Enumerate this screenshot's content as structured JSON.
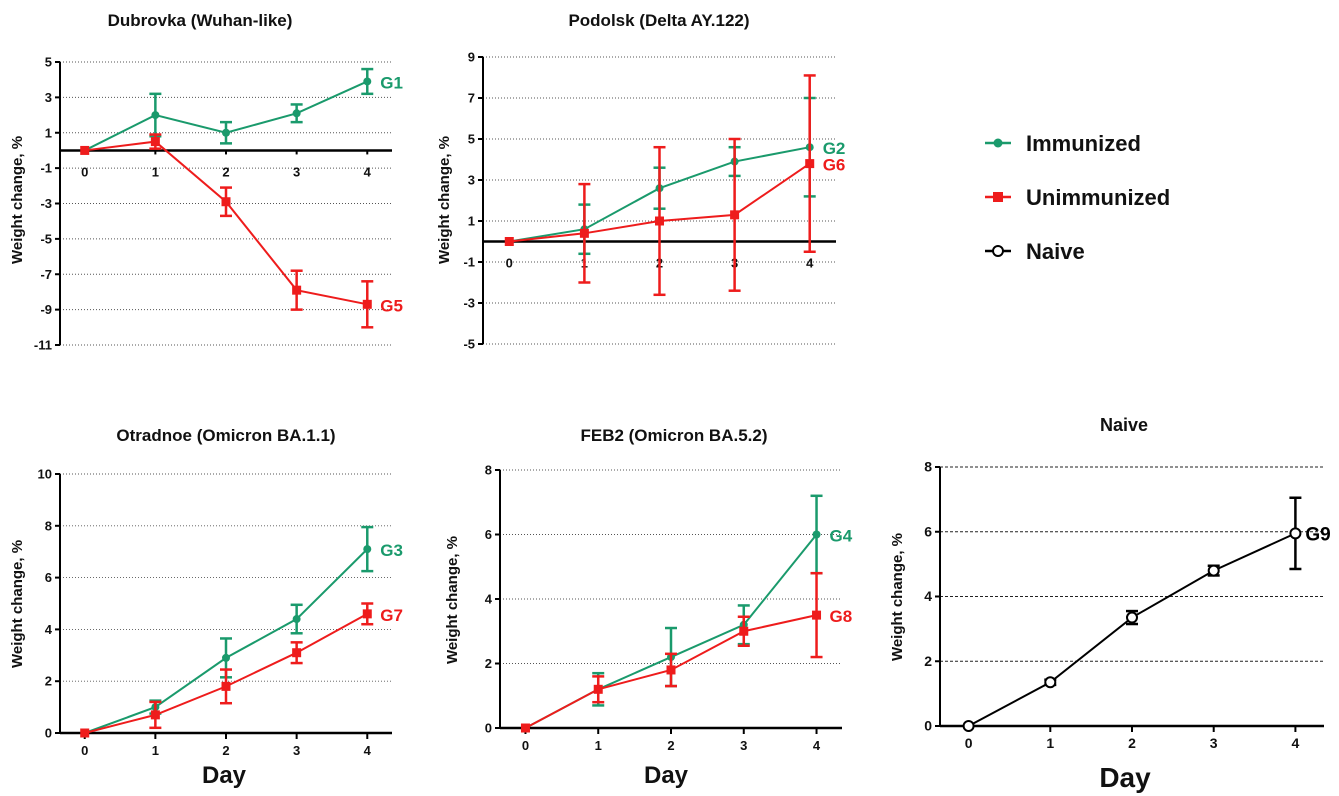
{
  "legend": {
    "entries": [
      {
        "label": "Immunized",
        "color": "#1a9a6c",
        "marker": "circle-filled"
      },
      {
        "label": "Unimmunized",
        "color": "#ee1c1c",
        "marker": "square-filled"
      },
      {
        "label": "Naive",
        "color": "#000000",
        "marker": "circle-open"
      }
    ]
  },
  "chart_data": [
    {
      "type": "line",
      "title": "Dubrovka (Wuhan-like)",
      "xlabel": "",
      "ylabel": "Weight change, %",
      "x": [
        0,
        1,
        2,
        3,
        4
      ],
      "xlim": [
        -0.35,
        4.35
      ],
      "ylim": [
        -11,
        5
      ],
      "yticks": [
        5,
        3,
        1,
        -1,
        -3,
        -5,
        -7,
        -9,
        -11
      ],
      "zero_line": true,
      "grid": "horizontal-dotted",
      "series": [
        {
          "label": "G1",
          "color": "#1a9a6c",
          "marker": "circle",
          "y": [
            0,
            2.0,
            1.0,
            2.1,
            3.9
          ],
          "err": [
            0,
            1.2,
            0.6,
            0.5,
            0.7
          ]
        },
        {
          "label": "G5",
          "color": "#ee1c1c",
          "marker": "square",
          "y": [
            0,
            0.5,
            -2.9,
            -7.9,
            -8.7
          ],
          "err": [
            0,
            0.4,
            0.8,
            1.1,
            1.3
          ]
        }
      ]
    },
    {
      "type": "line",
      "title": "Podolsk (Delta AY.122)",
      "xlabel": "",
      "ylabel": "Weight change, %",
      "x": [
        0,
        1,
        2,
        3,
        4
      ],
      "xlim": [
        -0.35,
        4.35
      ],
      "ylim": [
        -5,
        9
      ],
      "yticks": [
        9,
        7,
        5,
        3,
        1,
        -1,
        -3,
        -5
      ],
      "zero_line": true,
      "grid": "horizontal-dotted",
      "series": [
        {
          "label": "G2",
          "color": "#1a9a6c",
          "marker": "circle",
          "y": [
            0,
            0.6,
            2.6,
            3.9,
            4.6
          ],
          "err": [
            0,
            1.2,
            1.0,
            0.7,
            2.4
          ]
        },
        {
          "label": "G6",
          "color": "#ee1c1c",
          "marker": "square",
          "y": [
            0,
            0.4,
            1.0,
            1.3,
            3.8
          ],
          "err": [
            0,
            2.4,
            3.6,
            3.7,
            4.3
          ]
        }
      ]
    },
    {
      "type": "line",
      "title": "Otradnoe (Omicron BA.1.1)",
      "xlabel": "Day",
      "ylabel": "Weight change, %",
      "x": [
        0,
        1,
        2,
        3,
        4
      ],
      "xlim": [
        -0.35,
        4.35
      ],
      "ylim": [
        0,
        10
      ],
      "yticks": [
        0,
        2,
        4,
        6,
        8,
        10
      ],
      "zero_line": false,
      "grid": "horizontal-dotted",
      "series": [
        {
          "label": "G3",
          "color": "#1a9a6c",
          "marker": "circle",
          "y": [
            0,
            1.0,
            2.9,
            4.4,
            7.1
          ],
          "err": [
            0,
            0.25,
            0.75,
            0.55,
            0.85
          ]
        },
        {
          "label": "G7",
          "color": "#ee1c1c",
          "marker": "square",
          "y": [
            0,
            0.7,
            1.8,
            3.1,
            4.6
          ],
          "err": [
            0,
            0.5,
            0.65,
            0.4,
            0.4
          ]
        }
      ]
    },
    {
      "type": "line",
      "title": "FEB2 (Omicron BA.5.2)",
      "xlabel": "Day",
      "ylabel": "Weight change, %",
      "x": [
        0,
        1,
        2,
        3,
        4
      ],
      "xlim": [
        -0.35,
        4.35
      ],
      "ylim": [
        0,
        8
      ],
      "yticks": [
        0,
        2,
        4,
        6,
        8
      ],
      "zero_line": false,
      "grid": "horizontal-dotted",
      "series": [
        {
          "label": "G4",
          "color": "#1a9a6c",
          "marker": "circle",
          "y": [
            0,
            1.2,
            2.2,
            3.2,
            6.0
          ],
          "err": [
            0,
            0.5,
            0.9,
            0.6,
            1.2
          ]
        },
        {
          "label": "G8",
          "color": "#ee1c1c",
          "marker": "square",
          "y": [
            0,
            1.2,
            1.8,
            3.0,
            3.5
          ],
          "err": [
            0,
            0.4,
            0.5,
            0.45,
            1.3
          ]
        }
      ]
    },
    {
      "type": "line",
      "title": "Naive",
      "xlabel": "Day",
      "ylabel": "Weight change, %",
      "x": [
        0,
        1,
        2,
        3,
        4
      ],
      "xlim": [
        -0.35,
        4.35
      ],
      "ylim": [
        0,
        8
      ],
      "yticks": [
        0,
        2,
        4,
        6,
        8
      ],
      "zero_line": false,
      "grid": "horizontal-dashed",
      "series": [
        {
          "label": "G9",
          "color": "#000000",
          "marker": "circle-open",
          "y": [
            0,
            1.35,
            3.35,
            4.8,
            5.95
          ],
          "err": [
            0,
            0.08,
            0.2,
            0.15,
            1.1
          ]
        }
      ]
    }
  ]
}
